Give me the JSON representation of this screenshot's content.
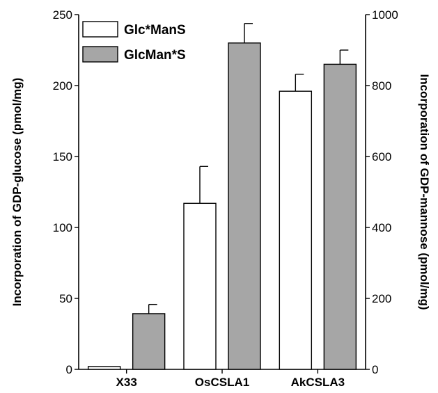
{
  "chart_data": {
    "type": "bar",
    "categories": [
      "X33",
      "OsCSLA1",
      "AkCSLA3"
    ],
    "series": [
      {
        "name": "Glc*ManS",
        "axis": "left",
        "color": "#ffffff",
        "values": [
          2,
          117,
          196
        ],
        "errors": [
          0,
          26,
          12
        ]
      },
      {
        "name": "GlcMan*S",
        "axis": "right",
        "color": "#a6a6a6",
        "values": [
          157,
          920,
          860
        ],
        "errors": [
          26,
          55,
          40
        ]
      }
    ],
    "y_left": {
      "label": "Incorporation of  GDP-glucose (pmol/mg)",
      "lim": [
        0,
        250
      ],
      "ticks": [
        0,
        50,
        100,
        150,
        200,
        250
      ]
    },
    "y_right": {
      "label": "Incorporation of GDP-mannose (pmol/mg)",
      "lim": [
        0,
        1000
      ],
      "ticks": [
        0,
        200,
        400,
        600,
        800,
        1000
      ]
    },
    "legend_position": "top-left",
    "grid": false
  }
}
